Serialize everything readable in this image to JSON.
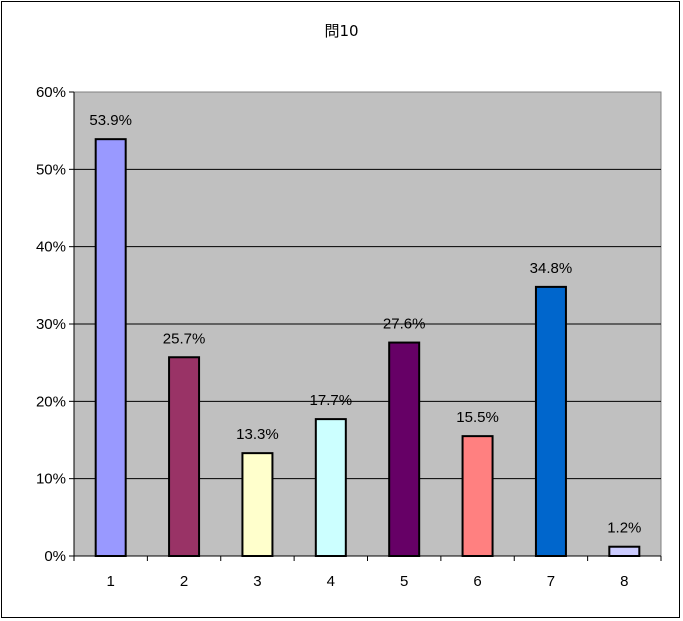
{
  "chart_data": {
    "type": "bar",
    "title": "問10",
    "categories": [
      "1",
      "2",
      "3",
      "4",
      "5",
      "6",
      "7",
      "8"
    ],
    "values": [
      53.9,
      25.7,
      13.3,
      17.7,
      27.6,
      15.5,
      34.8,
      1.2
    ],
    "data_labels": [
      "53.9%",
      "25.7%",
      "13.3%",
      "17.7%",
      "27.6%",
      "15.5%",
      "34.8%",
      "1.2%"
    ],
    "bar_colors": [
      "#9999ff",
      "#993366",
      "#ffffcc",
      "#ccffff",
      "#660066",
      "#ff8080",
      "#0066cc",
      "#ccccff"
    ],
    "plot_background": "#c0c0c0",
    "ylim": [
      0,
      60
    ],
    "yticks": [
      0,
      10,
      20,
      30,
      40,
      50,
      60
    ],
    "ytick_labels": [
      "0%",
      "10%",
      "20%",
      "30%",
      "40%",
      "50%",
      "60%"
    ],
    "grid": true,
    "legend": "none",
    "xlabel": "",
    "ylabel": ""
  }
}
